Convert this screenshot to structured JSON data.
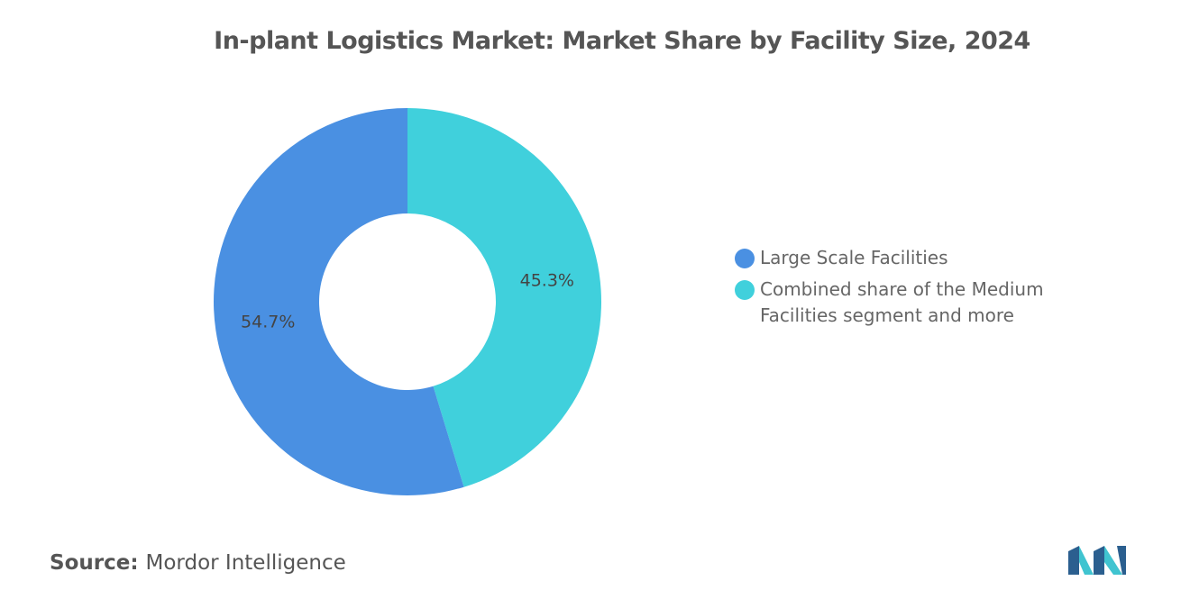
{
  "chart_data": {
    "type": "donut",
    "title": "In-plant Logistics Market: Market Share by Facility Size, 2024",
    "categories": [
      "Large Scale Facilities",
      "Combined share of the Medium Facilities segment and more"
    ],
    "values": [
      54.7,
      45.3
    ],
    "value_labels": [
      "54.7%",
      "45.3%"
    ],
    "colors": [
      "#4a90e2",
      "#40d0dc"
    ],
    "legend": "right"
  },
  "source": {
    "label": "Source:",
    "text": "Mordor Intelligence"
  }
}
